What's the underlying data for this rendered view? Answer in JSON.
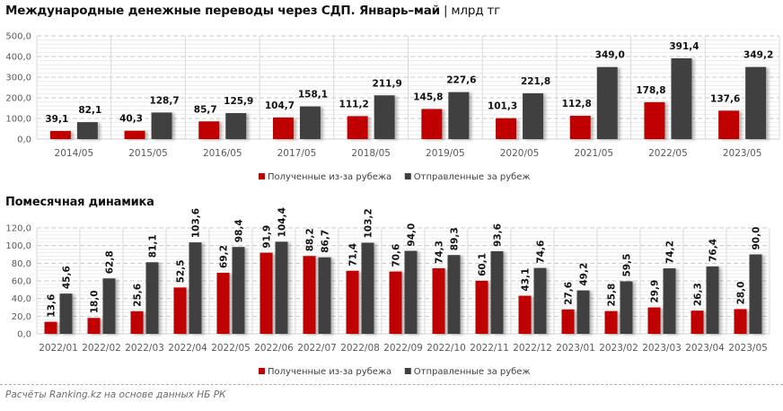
{
  "title": {
    "main": "Международные денежные переводы через СДП. Январь–май",
    "separator": " | ",
    "unit": "млрд тг"
  },
  "source": "Расчёты Ranking.kz на основе данных НБ РК",
  "colors": {
    "received": "#c00000",
    "sent": "#404040"
  },
  "chart_data": [
    {
      "type": "bar",
      "title": "Международные денежные переводы через СДП. Январь–май | млрд тг",
      "xlabel": "",
      "ylabel": "",
      "ylim": [
        0,
        500
      ],
      "yticks": [
        0,
        100,
        200,
        300,
        400,
        500
      ],
      "ytick_labels": [
        "0,0",
        "100,0",
        "200,0",
        "300,0",
        "400,0",
        "500,0"
      ],
      "grid": true,
      "legend": "bottom",
      "categories": [
        "2014/05",
        "2015/05",
        "2016/05",
        "2017/05",
        "2018/05",
        "2019/05",
        "2020/05",
        "2021/05",
        "2022/05",
        "2023/05"
      ],
      "series": [
        {
          "name": "Полученные из-за рубежа",
          "color": "#c00000",
          "values": [
            39.1,
            40.3,
            85.7,
            104.7,
            111.2,
            145.8,
            101.3,
            112.8,
            178.8,
            137.6
          ],
          "labels": [
            "39,1",
            "40,3",
            "85,7",
            "104,7",
            "111,2",
            "145,8",
            "101,3",
            "112,8",
            "178,8",
            "137,6"
          ]
        },
        {
          "name": "Отправленные за рубеж",
          "color": "#404040",
          "values": [
            82.1,
            128.7,
            125.9,
            158.1,
            211.9,
            227.6,
            221.8,
            349.0,
            391.4,
            349.2
          ],
          "labels": [
            "82,1",
            "128,7",
            "125,9",
            "158,1",
            "211,9",
            "227,6",
            "221,8",
            "349,0",
            "391,4",
            "349,2"
          ]
        }
      ]
    },
    {
      "type": "bar",
      "title": "Помесячная динамика",
      "xlabel": "",
      "ylabel": "",
      "ylim": [
        0,
        120
      ],
      "yticks": [
        0,
        20,
        40,
        60,
        80,
        100,
        120
      ],
      "ytick_labels": [
        "0,0",
        "20,0",
        "40,0",
        "60,0",
        "80,0",
        "100,0",
        "120,0"
      ],
      "grid": true,
      "legend": "bottom",
      "categories": [
        "2022/01",
        "2022/02",
        "2022/03",
        "2022/04",
        "2022/05",
        "2022/06",
        "2022/07",
        "2022/08",
        "2022/09",
        "2022/10",
        "2022/11",
        "2022/12",
        "2023/01",
        "2023/02",
        "2023/03",
        "2023/04",
        "2023/05"
      ],
      "series": [
        {
          "name": "Полученные из-за рубежа",
          "color": "#c00000",
          "values": [
            13.6,
            18.0,
            25.6,
            52.5,
            69.2,
            91.9,
            88.2,
            71.4,
            70.6,
            74.3,
            60.1,
            43.1,
            27.6,
            25.8,
            29.9,
            26.3,
            28.0
          ],
          "labels": [
            "13,6",
            "18,0",
            "25,6",
            "52,5",
            "69,2",
            "91,9",
            "88,2",
            "71,4",
            "70,6",
            "74,3",
            "60,1",
            "43,1",
            "27,6",
            "25,8",
            "29,9",
            "26,3",
            "28,0"
          ]
        },
        {
          "name": "Отправленные за рубеж",
          "color": "#404040",
          "values": [
            45.6,
            62.8,
            81.1,
            103.6,
            98.4,
            104.4,
            86.7,
            103.2,
            94.0,
            89.3,
            93.6,
            74.6,
            49.2,
            59.5,
            74.2,
            76.4,
            90.0
          ],
          "labels": [
            "45,6",
            "62,8",
            "81,1",
            "103,6",
            "98,4",
            "104,4",
            "86,7",
            "103,2",
            "94,0",
            "89,3",
            "93,6",
            "74,6",
            "49,2",
            "59,5",
            "74,2",
            "76,4",
            "90,0"
          ]
        }
      ]
    }
  ]
}
